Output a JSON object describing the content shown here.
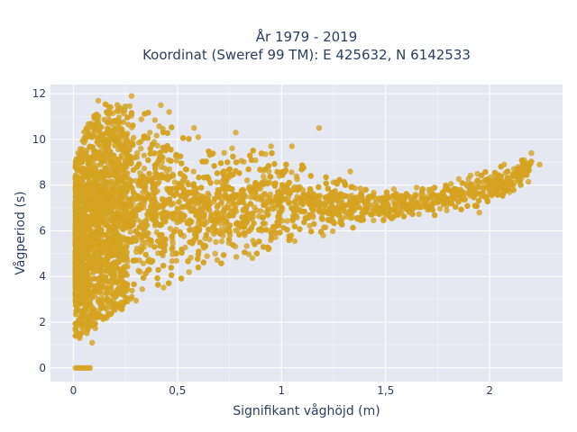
{
  "chart_data": {
    "type": "scatter",
    "title_lines": [
      "År 1979 - 2019",
      "Koordinat (Sweref 99 TM): E 425632, N 6142533"
    ],
    "xlabel": "Signifikant våghöjd (m)",
    "ylabel": "Vågperiod (s)",
    "xlim": [
      -0.11,
      2.35
    ],
    "ylim": [
      -0.6,
      12.4
    ],
    "x_ticks": [
      {
        "value": 0,
        "label": "0"
      },
      {
        "value": 0.5,
        "label": "0,5"
      },
      {
        "value": 1,
        "label": "1"
      },
      {
        "value": 1.5,
        "label": "1,5"
      },
      {
        "value": 2,
        "label": "2"
      }
    ],
    "y_ticks": [
      {
        "value": 0,
        "label": "0"
      },
      {
        "value": 2,
        "label": "2"
      },
      {
        "value": 4,
        "label": "4"
      },
      {
        "value": 6,
        "label": "6"
      },
      {
        "value": 8,
        "label": "8"
      },
      {
        "value": 10,
        "label": "10"
      },
      {
        "value": 12,
        "label": "12"
      }
    ],
    "grid": true,
    "colors": {
      "marker": "#d4a321",
      "plot_bg": "#e5e8f0",
      "grid": "#ffffff",
      "text": "#2a3f5f"
    },
    "envelope": [
      {
        "x": 0.01,
        "y_low": 1.3,
        "y_high": 9.0
      },
      {
        "x": 0.05,
        "y_low": 1.4,
        "y_high": 10.3
      },
      {
        "x": 0.1,
        "y_low": 1.6,
        "y_high": 11.2
      },
      {
        "x": 0.15,
        "y_low": 2.0,
        "y_high": 11.6
      },
      {
        "x": 0.2,
        "y_low": 2.4,
        "y_high": 11.5
      },
      {
        "x": 0.3,
        "y_low": 2.9,
        "y_high": 11.6
      },
      {
        "x": 0.4,
        "y_low": 3.3,
        "y_high": 11.0
      },
      {
        "x": 0.5,
        "y_low": 3.7,
        "y_high": 10.4
      },
      {
        "x": 0.6,
        "y_low": 4.0,
        "y_high": 9.9
      },
      {
        "x": 0.7,
        "y_low": 4.3,
        "y_high": 9.7
      },
      {
        "x": 0.8,
        "y_low": 4.6,
        "y_high": 9.7
      },
      {
        "x": 0.9,
        "y_low": 4.9,
        "y_high": 9.6
      },
      {
        "x": 1.0,
        "y_low": 5.1,
        "y_high": 9.4
      },
      {
        "x": 1.1,
        "y_low": 5.4,
        "y_high": 9.0
      },
      {
        "x": 1.2,
        "y_low": 5.7,
        "y_high": 8.4
      },
      {
        "x": 1.3,
        "y_low": 5.9,
        "y_high": 8.2
      },
      {
        "x": 1.4,
        "y_low": 6.1,
        "y_high": 8.0
      },
      {
        "x": 1.5,
        "y_low": 6.3,
        "y_high": 7.9
      },
      {
        "x": 1.6,
        "y_low": 6.5,
        "y_high": 7.9
      },
      {
        "x": 1.7,
        "y_low": 6.6,
        "y_high": 8.0
      },
      {
        "x": 1.8,
        "y_low": 6.8,
        "y_high": 8.2
      },
      {
        "x": 1.9,
        "y_low": 7.0,
        "y_high": 8.4
      },
      {
        "x": 2.0,
        "y_low": 7.2,
        "y_high": 8.7
      },
      {
        "x": 2.1,
        "y_low": 7.5,
        "y_high": 9.0
      },
      {
        "x": 2.2,
        "y_low": 8.2,
        "y_high": 9.4
      }
    ],
    "zero_period_points": [
      {
        "x": 0.01,
        "y": 0
      },
      {
        "x": 0.02,
        "y": 0
      },
      {
        "x": 0.03,
        "y": 0
      },
      {
        "x": 0.04,
        "y": 0
      },
      {
        "x": 0.05,
        "y": 0
      },
      {
        "x": 0.06,
        "y": 0
      },
      {
        "x": 0.07,
        "y": 0
      },
      {
        "x": 0.08,
        "y": 0
      }
    ],
    "outlier_points": [
      {
        "x": 0.28,
        "y": 11.9
      },
      {
        "x": 0.12,
        "y": 11.7
      },
      {
        "x": 0.42,
        "y": 11.5
      },
      {
        "x": 0.58,
        "y": 10.5
      },
      {
        "x": 0.78,
        "y": 10.3
      },
      {
        "x": 0.95,
        "y": 9.7
      },
      {
        "x": 1.05,
        "y": 9.7
      },
      {
        "x": 1.18,
        "y": 10.5
      },
      {
        "x": 1.33,
        "y": 8.6
      },
      {
        "x": 0.32,
        "y": 4.2
      },
      {
        "x": 0.09,
        "y": 1.1
      },
      {
        "x": 0.03,
        "y": 1.3
      },
      {
        "x": 0.6,
        "y": 10.1
      },
      {
        "x": 0.46,
        "y": 11.2
      },
      {
        "x": 2.2,
        "y": 9.4
      },
      {
        "x": 2.24,
        "y": 8.9
      },
      {
        "x": 2.07,
        "y": 8.9
      },
      {
        "x": 1.95,
        "y": 6.8
      },
      {
        "x": 1.56,
        "y": 6.7
      },
      {
        "x": 1.2,
        "y": 5.8
      },
      {
        "x": 0.86,
        "y": 4.8
      }
    ]
  }
}
